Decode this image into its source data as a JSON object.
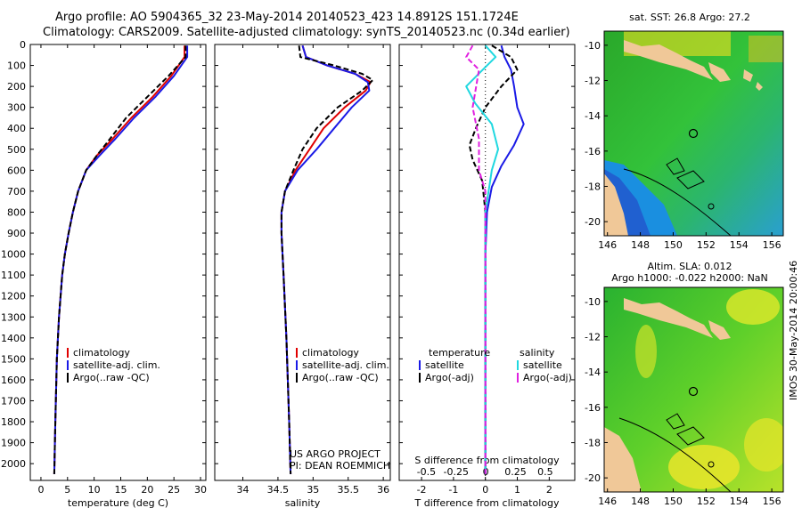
{
  "header": {
    "line1": "Argo profile: AO 5904365_32 23-May-2014 20140523_423 14.8912S 151.1724E",
    "line2": "Climatology: CARS2009. Satellite-adjusted climatology: synTS_20140523.nc (0.34d earlier)"
  },
  "side_stamp": "IMOS 30-May-2014 20:00:46",
  "colors": {
    "climatology": "#e00000",
    "satellite": "#1a1ae6",
    "argo": "#000000",
    "sal_satellite": "#20d8e0",
    "sal_argo": "#e020e0"
  },
  "chart_data": [
    {
      "type": "line",
      "panel": "temperature",
      "xlabel": "temperature (deg C)",
      "ylabel": "",
      "xlim": [
        -2,
        31
      ],
      "ylim": [
        2080,
        0
      ],
      "xticks": [
        0,
        5,
        10,
        15,
        20,
        25,
        30
      ],
      "yticks": [
        0,
        100,
        200,
        300,
        400,
        500,
        600,
        700,
        800,
        900,
        1000,
        1100,
        1200,
        1300,
        1400,
        1500,
        1600,
        1700,
        1800,
        1900,
        2000
      ],
      "legend": [
        "climatology",
        "satellite-adj. clim.",
        "Argo(..raw -QC)"
      ],
      "legend_placement": "bottom-left",
      "series": [
        {
          "name": "climatology",
          "style": "solid",
          "color_key": "climatology",
          "x": [
            27.0,
            27.0,
            24.5,
            21.0,
            17.0,
            13.5,
            10.5,
            8.5,
            7.0,
            6.0,
            5.2,
            4.5,
            4.0,
            3.4,
            3.0,
            2.7,
            2.5
          ],
          "y": [
            5,
            60,
            150,
            250,
            350,
            450,
            530,
            600,
            700,
            800,
            900,
            1000,
            1100,
            1300,
            1500,
            1800,
            2050
          ]
        },
        {
          "name": "satellite-adj. clim.",
          "style": "solid",
          "color_key": "satellite",
          "x": [
            27.5,
            27.5,
            25.0,
            21.5,
            17.5,
            14.0,
            11.0,
            8.5,
            7.0,
            6.0,
            5.2,
            4.5,
            4.0,
            3.4,
            3.0,
            2.7,
            2.5
          ],
          "y": [
            5,
            60,
            150,
            250,
            350,
            450,
            530,
            600,
            700,
            800,
            900,
            1000,
            1100,
            1300,
            1500,
            1800,
            2050
          ]
        },
        {
          "name": "Argo(..raw -QC)",
          "style": "dashed",
          "color_key": "argo",
          "x": [
            27.2,
            27.2,
            24.0,
            20.0,
            16.0,
            13.0,
            10.5,
            8.5,
            7.0,
            6.0,
            5.2,
            4.5,
            4.0,
            3.4,
            3.0,
            2.7,
            2.5
          ],
          "y": [
            5,
            60,
            150,
            250,
            350,
            450,
            530,
            600,
            700,
            800,
            900,
            1000,
            1100,
            1300,
            1500,
            1800,
            2050
          ]
        }
      ]
    },
    {
      "type": "line",
      "panel": "salinity",
      "xlabel": "salinity",
      "xlim": [
        33.6,
        36.1
      ],
      "ylim": [
        2080,
        0
      ],
      "xticks": [
        34,
        34.5,
        35,
        35.5,
        36
      ],
      "legend": [
        "climatology",
        "satellite-adj. clim.",
        "Argo(..raw -QC)"
      ],
      "legend_placement": "bottom-right",
      "annotation": [
        "US ARGO PROJECT",
        "PI: DEAN ROEMMICH"
      ],
      "series": [
        {
          "name": "climatology",
          "style": "solid",
          "color_key": "climatology",
          "x": [
            34.85,
            34.9,
            35.2,
            35.6,
            35.82,
            35.75,
            35.45,
            35.15,
            34.95,
            34.75,
            34.6,
            34.55,
            34.55,
            34.58,
            34.62,
            34.66,
            34.68
          ],
          "y": [
            5,
            60,
            100,
            140,
            180,
            220,
            300,
            400,
            500,
            600,
            700,
            800,
            900,
            1100,
            1400,
            1800,
            2050
          ]
        },
        {
          "name": "satellite-adj. clim.",
          "style": "solid",
          "color_key": "satellite",
          "x": [
            34.85,
            34.9,
            35.2,
            35.6,
            35.78,
            35.8,
            35.55,
            35.3,
            35.05,
            34.78,
            34.6,
            34.55,
            34.55,
            34.58,
            34.62,
            34.66,
            34.68
          ],
          "y": [
            5,
            60,
            100,
            140,
            180,
            220,
            300,
            400,
            500,
            600,
            700,
            800,
            900,
            1100,
            1400,
            1800,
            2050
          ]
        },
        {
          "name": "Argo(..raw -QC)",
          "style": "dashed",
          "color_key": "argo",
          "x": [
            34.8,
            34.82,
            35.3,
            35.7,
            35.85,
            35.7,
            35.35,
            35.05,
            34.85,
            34.72,
            34.6,
            34.55,
            34.55,
            34.58,
            34.62,
            34.66,
            34.68
          ],
          "y": [
            5,
            60,
            100,
            140,
            170,
            220,
            300,
            400,
            500,
            600,
            700,
            800,
            900,
            1100,
            1400,
            1800,
            2050
          ]
        }
      ]
    },
    {
      "type": "line",
      "panel": "differences",
      "xlabel": "T difference from climatology",
      "top_axis_label": "S difference from climatology",
      "xlim": [
        -2.7,
        2.8
      ],
      "ylim": [
        2080,
        0
      ],
      "xticks": [
        -2,
        -1,
        0,
        1,
        2
      ],
      "top_ticks": [
        "-0.5",
        "-0.25",
        "0",
        "0.25",
        "0.5"
      ],
      "legend_temperature_title": "temperature",
      "legend_salinity_title": "salinity",
      "legend": [
        "satellite",
        "Argo(-adj)",
        "satellite",
        "Argo(-adj)"
      ],
      "legend_placement": "bottom",
      "series": [
        {
          "name": "satellite",
          "group": "temperature",
          "style": "solid",
          "color_key": "satellite",
          "x": [
            0.5,
            0.6,
            0.8,
            0.9,
            1.0,
            1.2,
            0.9,
            0.5,
            0.2,
            0.05,
            0.0,
            0.0
          ],
          "y": [
            5,
            60,
            120,
            200,
            300,
            380,
            480,
            580,
            680,
            800,
            1000,
            2050
          ]
        },
        {
          "name": "Argo(-adj)",
          "group": "temperature",
          "style": "dashed",
          "color_key": "argo",
          "x": [
            0.2,
            0.8,
            1.0,
            0.5,
            0.0,
            -0.3,
            -0.5,
            -0.4,
            -0.1,
            0.0,
            0.0
          ],
          "y": [
            5,
            60,
            120,
            200,
            300,
            400,
            480,
            550,
            650,
            800,
            2050
          ]
        },
        {
          "name": "satellite",
          "group": "salinity",
          "style": "solid",
          "color_key": "sal_satellite",
          "x": [
            0.0,
            0.08,
            -0.02,
            -0.15,
            -0.08,
            0.05,
            0.1,
            0.05,
            0.0,
            0.0
          ],
          "y": [
            5,
            60,
            120,
            200,
            280,
            380,
            500,
            600,
            800,
            2050
          ]
        },
        {
          "name": "Argo(-adj)",
          "group": "salinity",
          "style": "dashed",
          "color_key": "sal_argo",
          "x": [
            -0.1,
            -0.15,
            -0.05,
            -0.1,
            -0.05,
            -0.05,
            0.0,
            0.0
          ],
          "y": [
            5,
            60,
            120,
            300,
            450,
            600,
            700,
            2050
          ]
        }
      ]
    },
    {
      "type": "heatmap",
      "panel": "map_sst",
      "title": "sat. SST: 26.8 Argo: 27.2",
      "xticks": [
        146,
        148,
        150,
        152,
        154,
        156
      ],
      "yticks": [
        -10,
        -12,
        -14,
        -16,
        -18,
        -20
      ],
      "xlim": [
        145.8,
        156.7
      ],
      "ylim": [
        -20.8,
        -9.2
      ],
      "argo_position": [
        151.17,
        -14.89
      ]
    },
    {
      "type": "heatmap",
      "panel": "map_sla",
      "title_line1": "Altim. SLA: 0.012",
      "title_line2": "Argo h1000: -0.022 h2000: NaN",
      "xticks": [
        146,
        148,
        150,
        152,
        154,
        156
      ],
      "yticks": [
        -10,
        -12,
        -14,
        -16,
        -18,
        -20
      ],
      "xlim": [
        145.8,
        156.7
      ],
      "ylim": [
        -20.8,
        -9.2
      ],
      "argo_position": [
        151.17,
        -14.89
      ]
    }
  ]
}
